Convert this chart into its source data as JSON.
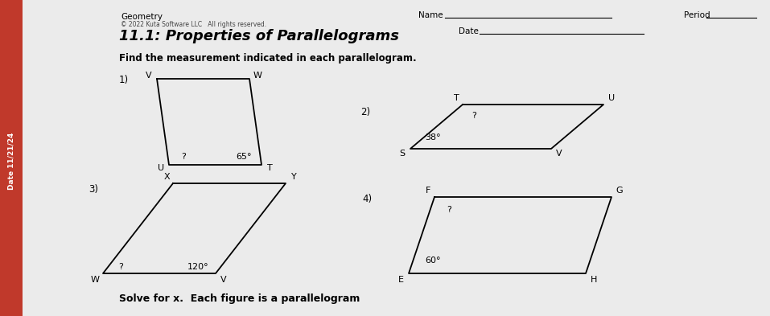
{
  "bg_color": "#c8c8c8",
  "paper_color": "#ececec",
  "title": "11.1: Properties of Parallelograms",
  "subtitle": "Geometry",
  "copyright": "© 2022 Kuta Software LLC   All rights reserved.",
  "name_label": "Name",
  "date_label": "Date",
  "period_label": "Period",
  "instruction": "Find the measurement indicated in each parallelogram.",
  "bottom_text": "Solve for x.  Each figure is a parallelogram",
  "fig1_label": "1)",
  "fig2_label": "2)",
  "fig3_label": "3)",
  "fig4_label": "4)",
  "fig1_angle_label": "65°",
  "fig1_question_label": "?",
  "fig2_angle_label": "38°",
  "fig2_question_label": "?",
  "fig3_angle_label": "120°",
  "fig3_question_label": "?",
  "fig4_angle_label": "60°",
  "fig4_question_label": "?",
  "date_strip_color": "#c0392b",
  "date_strip_text": "Date 11/21/24"
}
